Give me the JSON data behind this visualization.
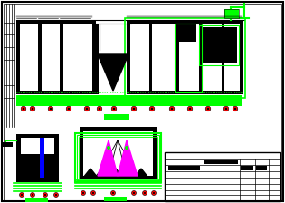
{
  "bg_color": "#ffffff",
  "green": "#00ff00",
  "black": "#000000",
  "blue": "#0000ff",
  "magenta": "#ff00ff",
  "red": "#ff0000",
  "figsize": [
    3.15,
    2.24
  ],
  "dpi": 100
}
